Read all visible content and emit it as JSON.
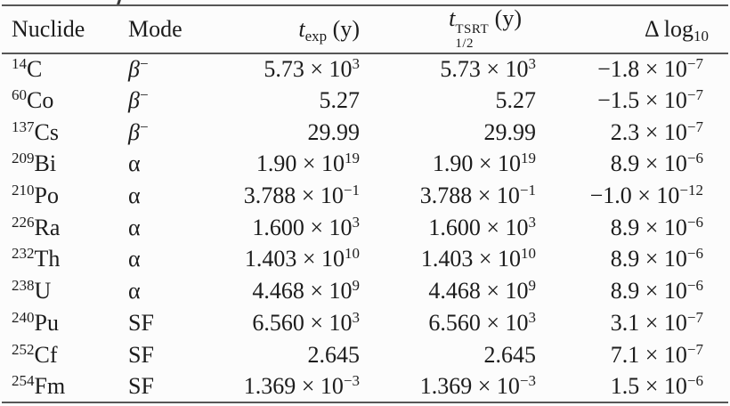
{
  "page": {
    "background": "#fcfcfc",
    "rule_color": "#565656",
    "text_color": "#1c1c1c",
    "caption_fragment": ","
  },
  "table": {
    "times_symbol": "×",
    "power_base": "10",
    "headers": {
      "nuclide": "Nuclide",
      "mode": "Mode",
      "t_exp": {
        "symbol": "t",
        "sub": "exp",
        "unit": "(y)"
      },
      "t_half": {
        "symbol": "t",
        "sup": "TSRT",
        "sub": "1/2",
        "unit": "(y)"
      },
      "delta": {
        "symbol": "Δ log",
        "sub": "10"
      }
    },
    "rows": [
      {
        "nuclide": {
          "mass": "14",
          "symbol": "C"
        },
        "mode": {
          "base": "β",
          "sup": "−"
        },
        "t_exp": {
          "mant": "5.73",
          "exp": "3"
        },
        "t_half": {
          "mant": "5.73",
          "exp": "3"
        },
        "delta": {
          "mant": "−1.8",
          "exp": "−7"
        }
      },
      {
        "nuclide": {
          "mass": "60",
          "symbol": "Co"
        },
        "mode": {
          "base": "β",
          "sup": "−"
        },
        "t_exp": {
          "mant": "5.27"
        },
        "t_half": {
          "mant": "5.27"
        },
        "delta": {
          "mant": "−1.5",
          "exp": "−7"
        }
      },
      {
        "nuclide": {
          "mass": "137",
          "symbol": "Cs"
        },
        "mode": {
          "base": "β",
          "sup": "−"
        },
        "t_exp": {
          "mant": "29.99"
        },
        "t_half": {
          "mant": "29.99"
        },
        "delta": {
          "mant": "2.3",
          "exp": "−7"
        }
      },
      {
        "nuclide": {
          "mass": "209",
          "symbol": "Bi"
        },
        "mode": {
          "base": "α"
        },
        "t_exp": {
          "mant": "1.90",
          "exp": "19"
        },
        "t_half": {
          "mant": "1.90",
          "exp": "19"
        },
        "delta": {
          "mant": "8.9",
          "exp": "−6"
        }
      },
      {
        "nuclide": {
          "mass": "210",
          "symbol": "Po"
        },
        "mode": {
          "base": "α"
        },
        "t_exp": {
          "mant": "3.788",
          "exp": "−1"
        },
        "t_half": {
          "mant": "3.788",
          "exp": "−1"
        },
        "delta": {
          "mant": "−1.0",
          "exp": "−12"
        }
      },
      {
        "nuclide": {
          "mass": "226",
          "symbol": "Ra"
        },
        "mode": {
          "base": "α"
        },
        "t_exp": {
          "mant": "1.600",
          "exp": "3"
        },
        "t_half": {
          "mant": "1.600",
          "exp": "3"
        },
        "delta": {
          "mant": "8.9",
          "exp": "−6"
        }
      },
      {
        "nuclide": {
          "mass": "232",
          "symbol": "Th"
        },
        "mode": {
          "base": "α"
        },
        "t_exp": {
          "mant": "1.403",
          "exp": "10"
        },
        "t_half": {
          "mant": "1.403",
          "exp": "10"
        },
        "delta": {
          "mant": "8.9",
          "exp": "−6"
        }
      },
      {
        "nuclide": {
          "mass": "238",
          "symbol": "U"
        },
        "mode": {
          "base": "α"
        },
        "t_exp": {
          "mant": "4.468",
          "exp": "9"
        },
        "t_half": {
          "mant": "4.468",
          "exp": "9"
        },
        "delta": {
          "mant": "8.9",
          "exp": "−6"
        }
      },
      {
        "nuclide": {
          "mass": "240",
          "symbol": "Pu"
        },
        "mode": {
          "base": "SF"
        },
        "t_exp": {
          "mant": "6.560",
          "exp": "3"
        },
        "t_half": {
          "mant": "6.560",
          "exp": "3"
        },
        "delta": {
          "mant": "3.1",
          "exp": "−7"
        }
      },
      {
        "nuclide": {
          "mass": "252",
          "symbol": "Cf"
        },
        "mode": {
          "base": "SF"
        },
        "t_exp": {
          "mant": "2.645"
        },
        "t_half": {
          "mant": "2.645"
        },
        "delta": {
          "mant": "7.1",
          "exp": "−7"
        }
      },
      {
        "nuclide": {
          "mass": "254",
          "symbol": "Fm"
        },
        "mode": {
          "base": "SF"
        },
        "t_exp": {
          "mant": "1.369",
          "exp": "−3"
        },
        "t_half": {
          "mant": "1.369",
          "exp": "−3"
        },
        "delta": {
          "mant": "1.5",
          "exp": "−6"
        }
      }
    ]
  }
}
